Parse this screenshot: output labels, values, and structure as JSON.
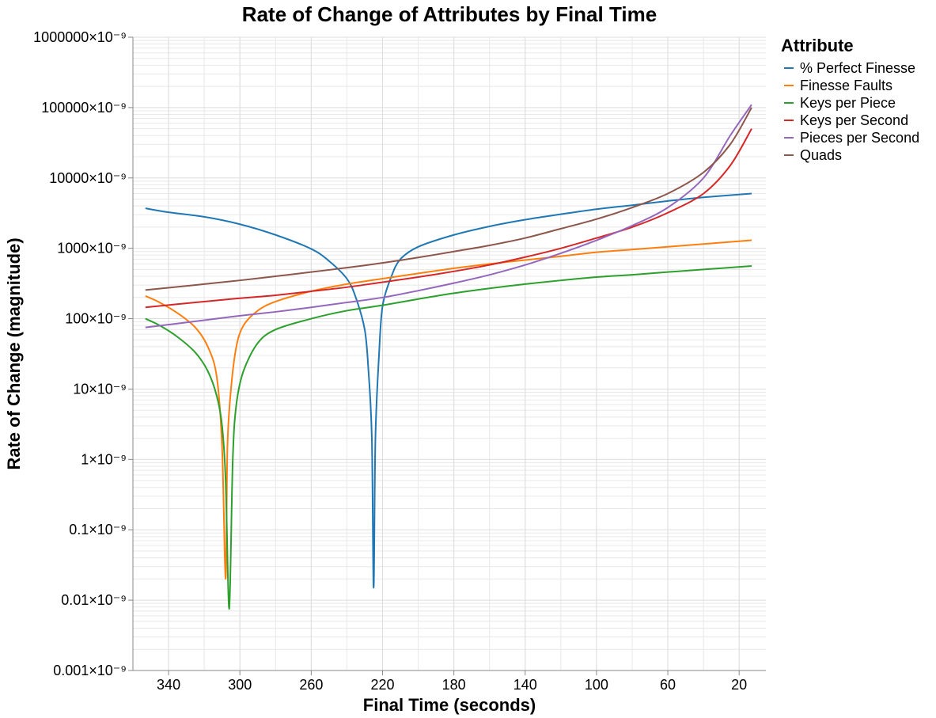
{
  "chart_data": {
    "type": "line",
    "title": "Rate of Change of Attributes by Final Time",
    "xlabel": "Final Time (seconds)",
    "ylabel": "Rate of Change (magnitude)",
    "x_reversed": true,
    "xlim": [
      360,
      5
    ],
    "x_ticks": [
      340,
      300,
      260,
      220,
      180,
      140,
      100,
      60,
      20
    ],
    "y_scale": "log",
    "ylim": [
      0.001,
      1000000
    ],
    "y_ticks": [
      {
        "value": 1000000,
        "label": "1000000×10⁻⁹"
      },
      {
        "value": 100000,
        "label": "100000×10⁻⁹"
      },
      {
        "value": 10000,
        "label": "10000×10⁻⁹"
      },
      {
        "value": 1000,
        "label": "1000×10⁻⁹"
      },
      {
        "value": 100,
        "label": "100×10⁻⁹"
      },
      {
        "value": 10,
        "label": "10×10⁻⁹"
      },
      {
        "value": 1,
        "label": "1×10⁻⁹"
      },
      {
        "value": 0.1,
        "label": "0.1×10⁻⁹"
      },
      {
        "value": 0.01,
        "label": "0.01×10⁻⁹"
      },
      {
        "value": 0.001,
        "label": "0.001×10⁻⁹"
      }
    ],
    "grid": true,
    "legend_title": "Attribute",
    "legend_position": "right",
    "series": [
      {
        "name": "% Perfect Finesse",
        "color": "#1f77b4",
        "points": [
          [
            353,
            3700
          ],
          [
            340,
            3250
          ],
          [
            320,
            2800
          ],
          [
            300,
            2200
          ],
          [
            280,
            1550
          ],
          [
            260,
            980
          ],
          [
            250,
            660
          ],
          [
            240,
            370
          ],
          [
            235,
            200
          ],
          [
            230,
            70
          ],
          [
            228,
            20
          ],
          [
            226,
            2
          ],
          [
            225,
            0.015
          ],
          [
            224,
            2
          ],
          [
            222,
            30
          ],
          [
            220,
            150
          ],
          [
            215,
            400
          ],
          [
            210,
            700
          ],
          [
            200,
            1050
          ],
          [
            180,
            1550
          ],
          [
            160,
            2050
          ],
          [
            140,
            2550
          ],
          [
            120,
            3050
          ],
          [
            100,
            3600
          ],
          [
            80,
            4100
          ],
          [
            60,
            4700
          ],
          [
            40,
            5300
          ],
          [
            13,
            6000
          ]
        ]
      },
      {
        "name": "Finesse Faults",
        "color": "#ff7f0e",
        "points": [
          [
            353,
            210
          ],
          [
            345,
            170
          ],
          [
            335,
            120
          ],
          [
            325,
            75
          ],
          [
            318,
            40
          ],
          [
            313,
            15
          ],
          [
            310,
            1.5
          ],
          [
            308,
            0.02
          ],
          [
            307,
            1.5
          ],
          [
            305,
            10
          ],
          [
            302,
            40
          ],
          [
            298,
            80
          ],
          [
            290,
            130
          ],
          [
            280,
            175
          ],
          [
            260,
            245
          ],
          [
            240,
            310
          ],
          [
            220,
            370
          ],
          [
            200,
            440
          ],
          [
            180,
            520
          ],
          [
            160,
            600
          ],
          [
            140,
            680
          ],
          [
            120,
            770
          ],
          [
            100,
            880
          ],
          [
            80,
            960
          ],
          [
            60,
            1050
          ],
          [
            40,
            1150
          ],
          [
            13,
            1300
          ]
        ]
      },
      {
        "name": "Keys per Piece",
        "color": "#2ca02c",
        "points": [
          [
            353,
            100
          ],
          [
            345,
            80
          ],
          [
            335,
            55
          ],
          [
            325,
            33
          ],
          [
            318,
            18
          ],
          [
            313,
            8
          ],
          [
            310,
            3
          ],
          [
            308,
            0.5
          ],
          [
            306,
            0.0075
          ],
          [
            304,
            1
          ],
          [
            302,
            6
          ],
          [
            298,
            18
          ],
          [
            290,
            45
          ],
          [
            280,
            70
          ],
          [
            260,
            100
          ],
          [
            240,
            130
          ],
          [
            220,
            155
          ],
          [
            200,
            190
          ],
          [
            180,
            230
          ],
          [
            160,
            270
          ],
          [
            140,
            310
          ],
          [
            120,
            350
          ],
          [
            100,
            390
          ],
          [
            80,
            420
          ],
          [
            60,
            460
          ],
          [
            40,
            500
          ],
          [
            13,
            560
          ]
        ]
      },
      {
        "name": "Keys per Second",
        "color": "#d62728",
        "points": [
          [
            353,
            145
          ],
          [
            320,
            175
          ],
          [
            300,
            195
          ],
          [
            280,
            215
          ],
          [
            260,
            245
          ],
          [
            240,
            280
          ],
          [
            220,
            330
          ],
          [
            200,
            390
          ],
          [
            180,
            470
          ],
          [
            160,
            580
          ],
          [
            140,
            750
          ],
          [
            120,
            1000
          ],
          [
            100,
            1400
          ],
          [
            80,
            2000
          ],
          [
            60,
            3200
          ],
          [
            40,
            6000
          ],
          [
            25,
            15000
          ],
          [
            13,
            50000
          ]
        ]
      },
      {
        "name": "Pieces per Second",
        "color": "#9467bd",
        "points": [
          [
            353,
            75
          ],
          [
            320,
            95
          ],
          [
            300,
            110
          ],
          [
            280,
            125
          ],
          [
            260,
            145
          ],
          [
            240,
            170
          ],
          [
            220,
            200
          ],
          [
            200,
            250
          ],
          [
            180,
            320
          ],
          [
            160,
            420
          ],
          [
            140,
            580
          ],
          [
            120,
            850
          ],
          [
            100,
            1300
          ],
          [
            80,
            2100
          ],
          [
            60,
            3800
          ],
          [
            40,
            10000
          ],
          [
            25,
            40000
          ],
          [
            13,
            110000
          ]
        ]
      },
      {
        "name": "Quads",
        "color": "#8c564b",
        "points": [
          [
            353,
            255
          ],
          [
            320,
            310
          ],
          [
            300,
            350
          ],
          [
            280,
            400
          ],
          [
            260,
            460
          ],
          [
            240,
            530
          ],
          [
            220,
            620
          ],
          [
            200,
            740
          ],
          [
            180,
            900
          ],
          [
            160,
            1100
          ],
          [
            140,
            1400
          ],
          [
            120,
            1900
          ],
          [
            100,
            2600
          ],
          [
            80,
            3800
          ],
          [
            60,
            6000
          ],
          [
            40,
            12000
          ],
          [
            25,
            30000
          ],
          [
            13,
            100000
          ]
        ]
      }
    ]
  }
}
